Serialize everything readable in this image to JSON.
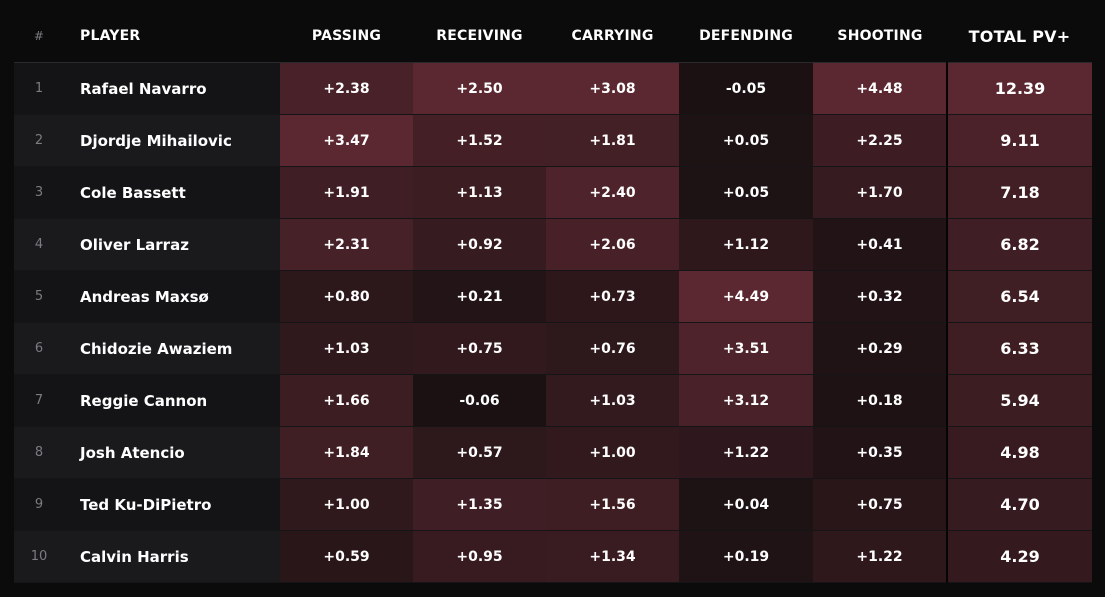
{
  "chart_data": {
    "type": "table",
    "columns": {
      "rank": "#",
      "player": "PLAYER",
      "passing": "PASSING",
      "receiving": "RECEIVING",
      "carrying": "CARRYING",
      "defending": "DEFENDING",
      "shooting": "SHOOTING",
      "total": "TOTAL PV+"
    },
    "stat_keys": [
      "passing",
      "receiving",
      "carrying",
      "defending",
      "shooting"
    ],
    "heat_color": "#5b2831",
    "rows": [
      {
        "rank": "1",
        "player": "Rafael Navarro",
        "passing": "+2.38",
        "receiving": "+2.50",
        "carrying": "+3.08",
        "defending": "-0.05",
        "shooting": "+4.48",
        "total": "12.39"
      },
      {
        "rank": "2",
        "player": "Djordje Mihailovic",
        "passing": "+3.47",
        "receiving": "+1.52",
        "carrying": "+1.81",
        "defending": "+0.05",
        "shooting": "+2.25",
        "total": "9.11"
      },
      {
        "rank": "3",
        "player": "Cole Bassett",
        "passing": "+1.91",
        "receiving": "+1.13",
        "carrying": "+2.40",
        "defending": "+0.05",
        "shooting": "+1.70",
        "total": "7.18"
      },
      {
        "rank": "4",
        "player": "Oliver Larraz",
        "passing": "+2.31",
        "receiving": "+0.92",
        "carrying": "+2.06",
        "defending": "+1.12",
        "shooting": "+0.41",
        "total": "6.82"
      },
      {
        "rank": "5",
        "player": "Andreas Maxsø",
        "passing": "+0.80",
        "receiving": "+0.21",
        "carrying": "+0.73",
        "defending": "+4.49",
        "shooting": "+0.32",
        "total": "6.54"
      },
      {
        "rank": "6",
        "player": "Chidozie Awaziem",
        "passing": "+1.03",
        "receiving": "+0.75",
        "carrying": "+0.76",
        "defending": "+3.51",
        "shooting": "+0.29",
        "total": "6.33"
      },
      {
        "rank": "7",
        "player": "Reggie Cannon",
        "passing": "+1.66",
        "receiving": "-0.06",
        "carrying": "+1.03",
        "defending": "+3.12",
        "shooting": "+0.18",
        "total": "5.94"
      },
      {
        "rank": "8",
        "player": "Josh Atencio",
        "passing": "+1.84",
        "receiving": "+0.57",
        "carrying": "+1.00",
        "defending": "+1.22",
        "shooting": "+0.35",
        "total": "4.98"
      },
      {
        "rank": "9",
        "player": "Ted Ku-DiPietro",
        "passing": "+1.00",
        "receiving": "+1.35",
        "carrying": "+1.56",
        "defending": "+0.04",
        "shooting": "+0.75",
        "total": "4.70"
      },
      {
        "rank": "10",
        "player": "Calvin Harris",
        "passing": "+0.59",
        "receiving": "+0.95",
        "carrying": "+1.34",
        "defending": "+0.19",
        "shooting": "+1.22",
        "total": "4.29"
      }
    ]
  }
}
